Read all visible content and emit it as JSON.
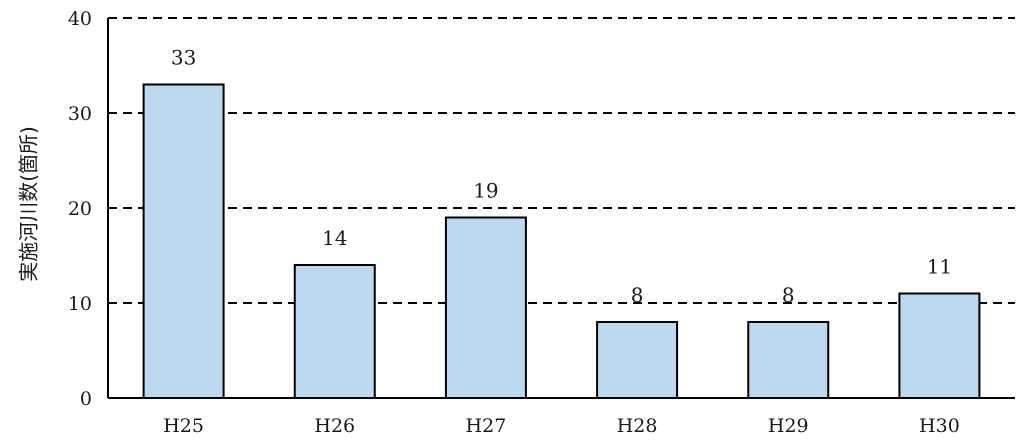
{
  "chart_data": {
    "type": "bar",
    "title": "",
    "xlabel": "",
    "ylabel": "実施河川数(箇所)",
    "categories": [
      "H25",
      "H26",
      "H27",
      "H28",
      "H29",
      "H30"
    ],
    "values": [
      33,
      14,
      19,
      8,
      8,
      11
    ],
    "data_labels": [
      "33",
      "14",
      "19",
      "8",
      "8",
      "11"
    ],
    "ylim": [
      0,
      40
    ],
    "yticks": [
      0,
      10,
      20,
      30,
      40
    ],
    "ytick_labels": [
      "0",
      "10",
      "20",
      "30",
      "40"
    ],
    "grid": "dashed horizontal",
    "legend": "none",
    "bar_color": "#bdd7ee",
    "bar_edge_color": "#000000"
  }
}
